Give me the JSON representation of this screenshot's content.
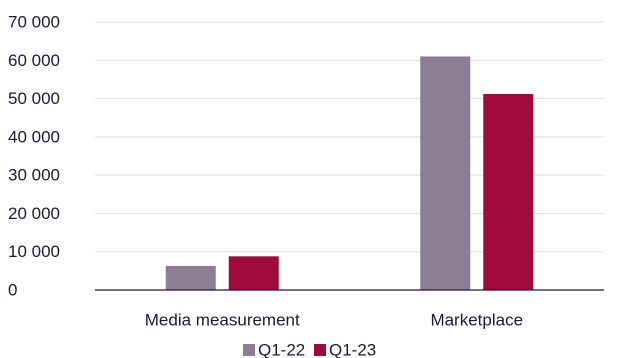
{
  "chart_data": {
    "type": "bar",
    "title": "",
    "xlabel": "",
    "ylabel": "",
    "categories": [
      "Media measurement",
      "Marketplace"
    ],
    "series": [
      {
        "name": "Q1-22",
        "values": [
          6300,
          61000
        ],
        "color": "#8c7f93"
      },
      {
        "name": "Q1-23",
        "values": [
          8800,
          51200
        ],
        "color": "#a10b3c"
      }
    ],
    "ylim": [
      0,
      70000
    ],
    "yticks": [
      0,
      10000,
      20000,
      30000,
      40000,
      50000,
      60000,
      70000
    ],
    "ytick_labels": [
      "0",
      "10 000",
      "20 000",
      "30 000",
      "40 000",
      "50 000",
      "60 000",
      "70 000"
    ],
    "grid": true,
    "legend_position": "bottom"
  }
}
